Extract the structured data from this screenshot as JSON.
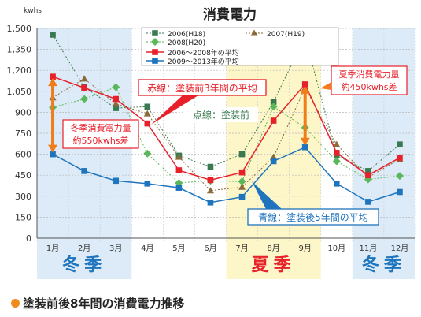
{
  "chart_data": {
    "type": "line",
    "title": "消費電力",
    "unit_label": "kwhs",
    "ylim": [
      0,
      1500
    ],
    "yticks": [
      "0",
      "150",
      "300",
      "450",
      "600",
      "750",
      "900",
      "1,050",
      "1,200",
      "1,350",
      "1,500"
    ],
    "categories": [
      "1月",
      "2月",
      "3月",
      "4月",
      "5月",
      "6月",
      "7月",
      "8月",
      "9月",
      "10月",
      "11月",
      "12月"
    ],
    "series": [
      {
        "name": "2006(H18)",
        "color": "#3a7a50",
        "marker": "square",
        "dash": true,
        "values": [
          1455,
          1080,
          930,
          940,
          590,
          510,
          600,
          975,
          1440,
          590,
          480,
          670
        ]
      },
      {
        "name": "2007(H19)",
        "color": "#8a6a3a",
        "marker": "triangle",
        "dash": true,
        "values": [
          1005,
          1140,
          960,
          890,
          580,
          340,
          365,
          580,
          1075,
          670,
          435,
          565
        ]
      },
      {
        "name": "2008(H20)",
        "color": "#5ab85a",
        "marker": "diamond",
        "dash": true,
        "values": [
          935,
          995,
          1080,
          605,
          395,
          410,
          405,
          940,
          790,
          550,
          420,
          445
        ]
      },
      {
        "name": "2006～2008年の平均",
        "color": "#e8202a",
        "marker": "square",
        "dash": false,
        "values": [
          1155,
          1075,
          995,
          820,
          485,
          415,
          470,
          840,
          1100,
          610,
          450,
          575
        ]
      },
      {
        "name": "2009～2013年の平均",
        "color": "#1e74bd",
        "marker": "square",
        "dash": false,
        "values": [
          600,
          480,
          410,
          390,
          360,
          255,
          295,
          550,
          650,
          390,
          260,
          330
        ]
      }
    ],
    "seasons": [
      {
        "label": "冬季",
        "color": "#1e74bd",
        "months": [
          1,
          3
        ],
        "bg": "#dcebf7"
      },
      {
        "label": "夏季",
        "color": "#e8202a",
        "months": [
          7,
          9
        ],
        "bg": "#fdf6c8"
      },
      {
        "label": "冬季",
        "color": "#1e74bd",
        "months": [
          11,
          12
        ],
        "bg": "#dcebf7"
      }
    ],
    "annotations": [
      {
        "text": "赤線：塗装前3年間の平均",
        "color": "#e8202a"
      },
      {
        "text": "点線：塗装前",
        "color": "#3a7a50"
      },
      {
        "text": "青線：塗装後5年間の平均",
        "color": "#1e74bd"
      },
      {
        "lines": [
          "冬季消費電力量",
          "約550kwhs差"
        ],
        "color": "#e8202a",
        "from": 600,
        "to": 1155,
        "month": 1
      },
      {
        "lines": [
          "夏季消費電力量",
          "約450kwhs差"
        ],
        "color": "#e8202a",
        "from": 650,
        "to": 1100,
        "month": 9
      }
    ],
    "grid": true,
    "legend_position": "top-center"
  },
  "footer": {
    "caption": "塗装前後8年間の消費電力推移"
  }
}
